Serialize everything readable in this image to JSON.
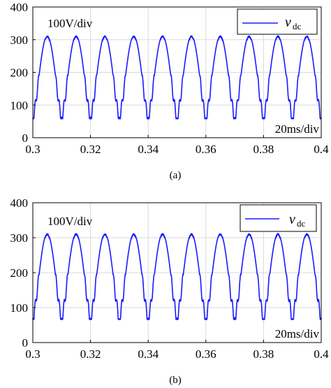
{
  "chart_data": [
    {
      "type": "line",
      "panel_label": "(a)",
      "xlim": [
        0.3,
        0.4
      ],
      "ylim": [
        0,
        400
      ],
      "xticks": [
        "0.3",
        "0.32",
        "0.34",
        "0.36",
        "0.38",
        "0.4"
      ],
      "yticks": [
        "0",
        "100",
        "200",
        "300",
        "400"
      ],
      "grid": true,
      "legend": {
        "position": "top-right",
        "symbol": "v",
        "subscript": "dc"
      },
      "annotations": [
        "100V/div",
        "20ms/div"
      ],
      "series": [
        {
          "color": "#1a1aff",
          "period": 0.01,
          "peak": 312,
          "trough": 62,
          "first_peak_x": 0.305,
          "waveform": "rectified pulses with ringing notches near minima"
        }
      ]
    },
    {
      "type": "line",
      "panel_label": "(b)",
      "xlim": [
        0.3,
        0.4
      ],
      "ylim": [
        0,
        400
      ],
      "xticks": [
        "0.3",
        "0.32",
        "0.34",
        "0.36",
        "0.38",
        "0.4"
      ],
      "yticks": [
        "0",
        "100",
        "200",
        "300",
        "400"
      ],
      "grid": true,
      "legend": {
        "position": "top-right",
        "symbol": "v",
        "subscript": "dc"
      },
      "annotations": [
        "100V/div",
        "20ms/div"
      ],
      "series": [
        {
          "color": "#1a1aff",
          "period": 0.01,
          "peak": 312,
          "trough": 70,
          "first_peak_x": 0.305,
          "waveform": "rectified pulses with ringing notches near minima"
        }
      ]
    }
  ]
}
